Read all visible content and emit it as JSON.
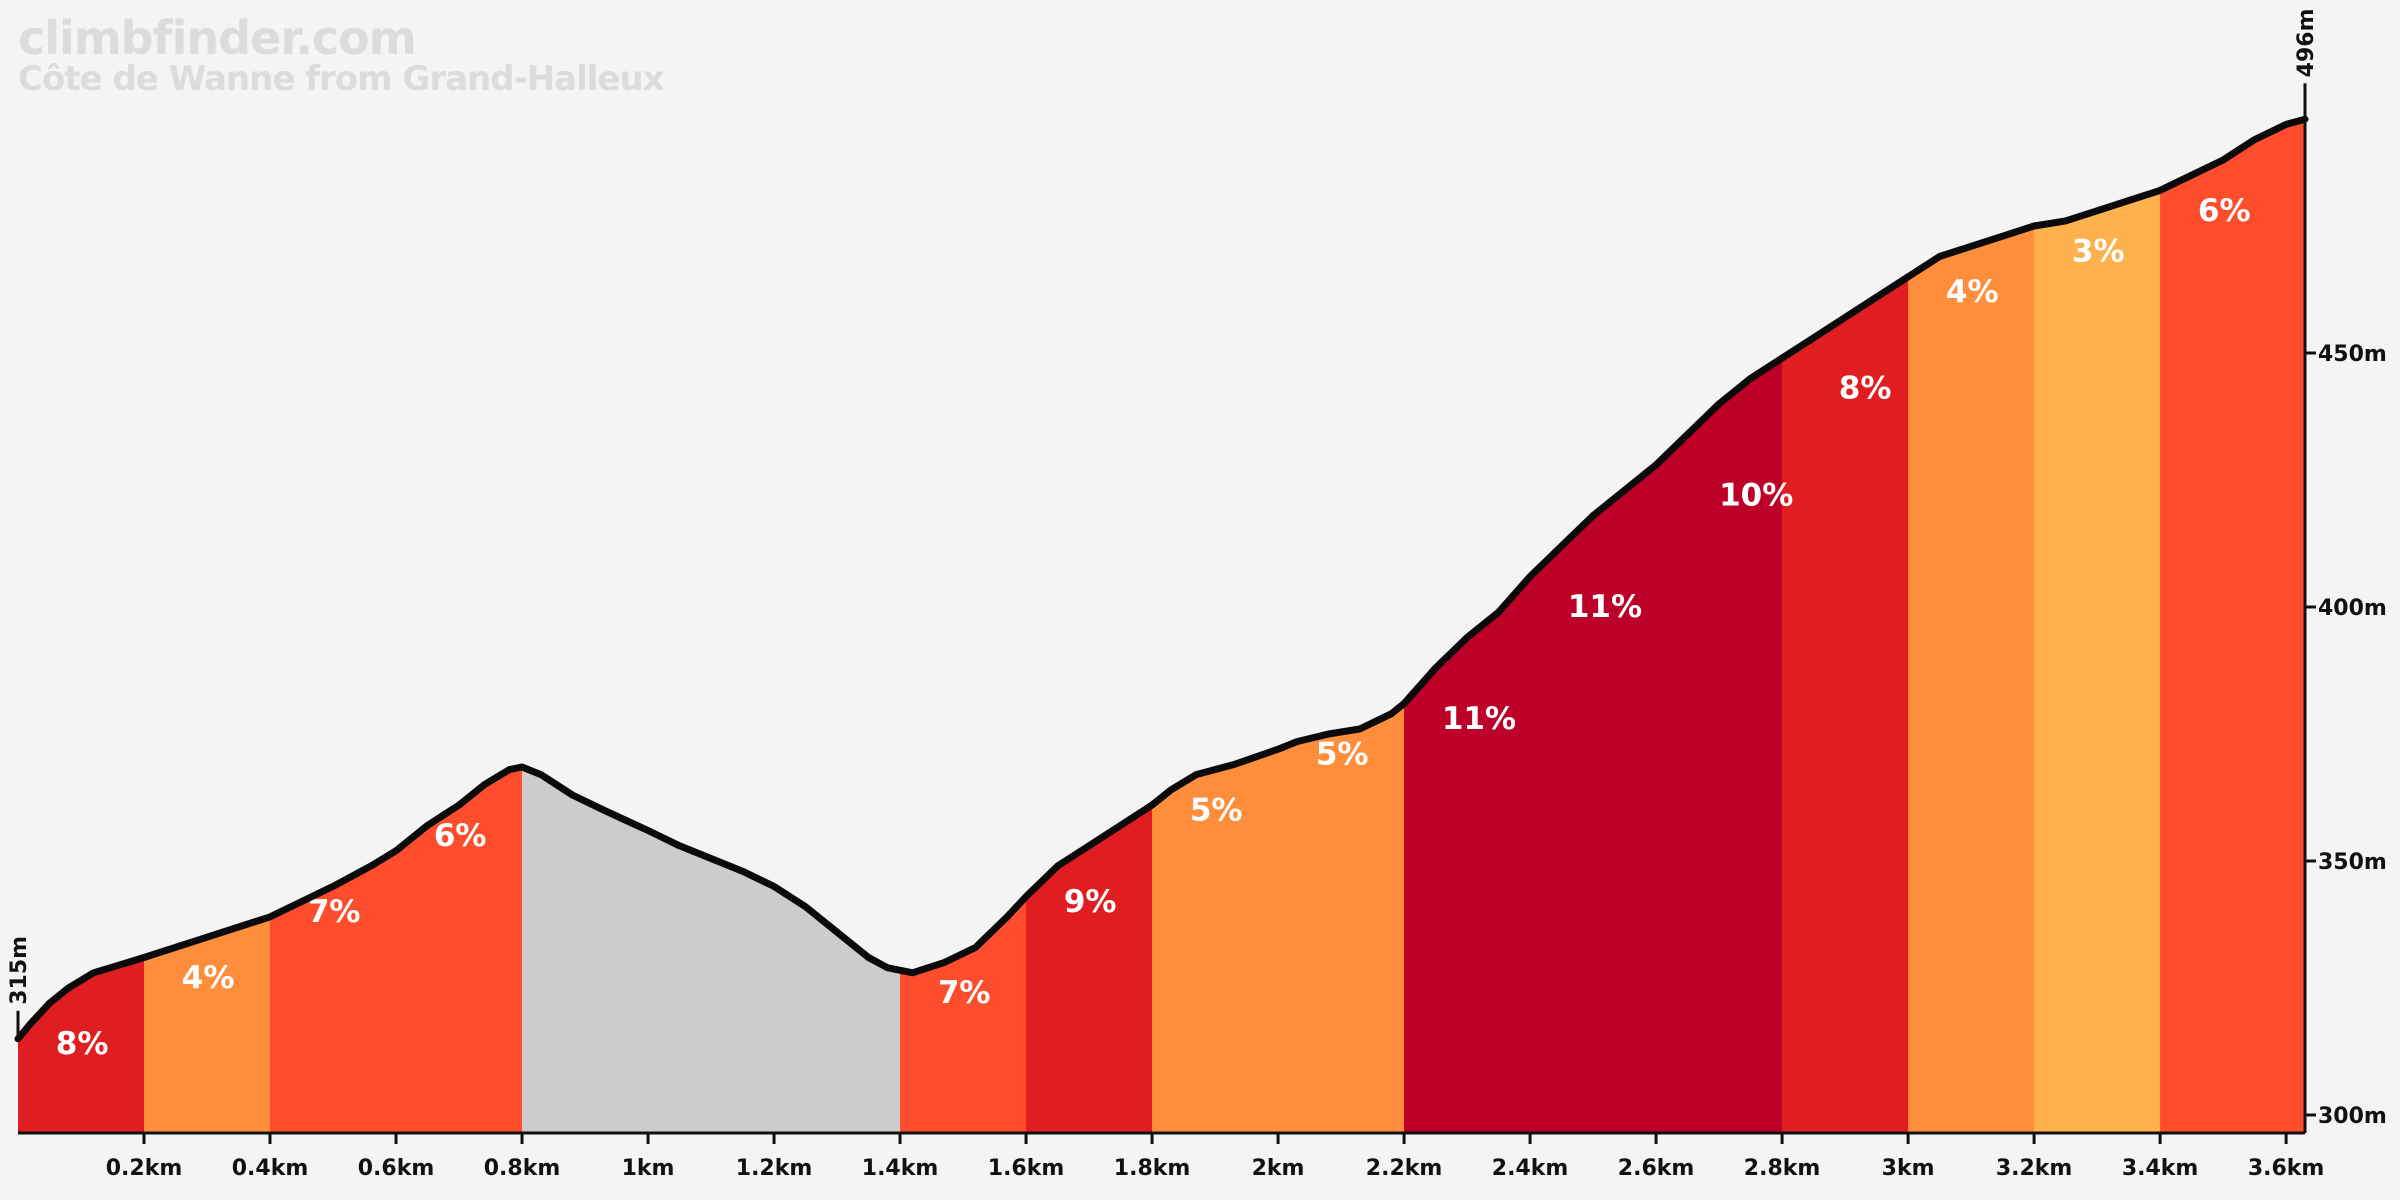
{
  "brand": {
    "site": "climbfinder.com",
    "climb": "Côte de Wanne from Grand-Halleux"
  },
  "chart_data": {
    "type": "area",
    "x_unit": "km",
    "y_unit": "m",
    "xlim": [
      0,
      3.63
    ],
    "ylim": [
      300,
      500
    ],
    "x_ticks": [
      "0.2km",
      "0.4km",
      "0.6km",
      "0.8km",
      "1km",
      "1.2km",
      "1.4km",
      "1.6km",
      "1.8km",
      "2km",
      "2.2km",
      "2.4km",
      "2.6km",
      "2.8km",
      "3km",
      "3.2km",
      "3.4km",
      "3.6km"
    ],
    "x_tick_values": [
      0.2,
      0.4,
      0.6,
      0.8,
      1.0,
      1.2,
      1.4,
      1.6,
      1.8,
      2.0,
      2.2,
      2.4,
      2.6,
      2.8,
      3.0,
      3.2,
      3.4,
      3.6
    ],
    "y_ticks": [
      "300m",
      "350m",
      "400m",
      "450m"
    ],
    "y_tick_values": [
      300,
      350,
      400,
      450
    ],
    "start_label": "315m",
    "end_label": "496m",
    "start_elevation": 315,
    "end_elevation": 496,
    "profile": [
      [
        0.0,
        315
      ],
      [
        0.02,
        318
      ],
      [
        0.05,
        322
      ],
      [
        0.08,
        325
      ],
      [
        0.12,
        328
      ],
      [
        0.2,
        331
      ],
      [
        0.3,
        335
      ],
      [
        0.4,
        339
      ],
      [
        0.45,
        342
      ],
      [
        0.5,
        345
      ],
      [
        0.56,
        349
      ],
      [
        0.6,
        352
      ],
      [
        0.65,
        357
      ],
      [
        0.7,
        361
      ],
      [
        0.74,
        365
      ],
      [
        0.78,
        368
      ],
      [
        0.8,
        368.5
      ],
      [
        0.83,
        367
      ],
      [
        0.88,
        363
      ],
      [
        0.93,
        360
      ],
      [
        1.0,
        356
      ],
      [
        1.05,
        353
      ],
      [
        1.15,
        348
      ],
      [
        1.2,
        345
      ],
      [
        1.25,
        341
      ],
      [
        1.3,
        336
      ],
      [
        1.35,
        331
      ],
      [
        1.38,
        329
      ],
      [
        1.42,
        328
      ],
      [
        1.47,
        330
      ],
      [
        1.52,
        333
      ],
      [
        1.57,
        339
      ],
      [
        1.6,
        343
      ],
      [
        1.65,
        349
      ],
      [
        1.7,
        353
      ],
      [
        1.75,
        357
      ],
      [
        1.8,
        361
      ],
      [
        1.83,
        364
      ],
      [
        1.87,
        367
      ],
      [
        1.93,
        369
      ],
      [
        2.0,
        372
      ],
      [
        2.03,
        373.5
      ],
      [
        2.08,
        375
      ],
      [
        2.13,
        376
      ],
      [
        2.18,
        379
      ],
      [
        2.2,
        381
      ],
      [
        2.25,
        388
      ],
      [
        2.3,
        394
      ],
      [
        2.35,
        399
      ],
      [
        2.4,
        406
      ],
      [
        2.45,
        412
      ],
      [
        2.5,
        418
      ],
      [
        2.55,
        423
      ],
      [
        2.6,
        428
      ],
      [
        2.65,
        434
      ],
      [
        2.7,
        440
      ],
      [
        2.75,
        445
      ],
      [
        2.8,
        449
      ],
      [
        2.85,
        453
      ],
      [
        2.9,
        457
      ],
      [
        2.95,
        461
      ],
      [
        3.0,
        465
      ],
      [
        3.05,
        469
      ],
      [
        3.1,
        471
      ],
      [
        3.15,
        473
      ],
      [
        3.2,
        475
      ],
      [
        3.25,
        476
      ],
      [
        3.3,
        478
      ],
      [
        3.35,
        480
      ],
      [
        3.4,
        482
      ],
      [
        3.45,
        485
      ],
      [
        3.5,
        488
      ],
      [
        3.55,
        492
      ],
      [
        3.6,
        495
      ],
      [
        3.63,
        496
      ]
    ],
    "segments": [
      {
        "x0": 0.0,
        "x1": 0.2,
        "label": "8%",
        "color": "#e01d20"
      },
      {
        "x0": 0.2,
        "x1": 0.4,
        "label": "4%",
        "color": "#fe8e3c"
      },
      {
        "x0": 0.4,
        "x1": 0.8,
        "label": "7%",
        "color": "#fe4d2d"
      },
      {
        "x0": 0.8,
        "x1": 1.4,
        "label": "",
        "color": "#cccccc"
      },
      {
        "x0": 1.4,
        "x1": 1.6,
        "label": "7%",
        "color": "#fe4d2d"
      },
      {
        "x0": 1.6,
        "x1": 1.8,
        "label": "9%",
        "color": "#e01d20"
      },
      {
        "x0": 1.8,
        "x1": 2.2,
        "label": "5%",
        "color": "#fe8e3c"
      },
      {
        "x0": 2.2,
        "x1": 2.8,
        "label": "11%",
        "color": "#bd0027"
      },
      {
        "x0": 2.8,
        "x1": 3.0,
        "label": "8%",
        "color": "#e01d20"
      },
      {
        "x0": 3.0,
        "x1": 3.2,
        "label": "4%",
        "color": "#fe8e3c"
      },
      {
        "x0": 3.2,
        "x1": 3.4,
        "label": "3%",
        "color": "#feb14c"
      },
      {
        "x0": 3.4,
        "x1": 3.63,
        "label": "6%",
        "color": "#fe4d2d"
      }
    ],
    "gradient_labels": [
      {
        "x": 0.06,
        "y": 312,
        "text": "8%"
      },
      {
        "x": 0.26,
        "y": 325,
        "text": "4%"
      },
      {
        "x": 0.46,
        "y": 338,
        "text": "7%"
      },
      {
        "x": 0.66,
        "y": 353,
        "text": "6%"
      },
      {
        "x": 1.46,
        "y": 322,
        "text": "7%"
      },
      {
        "x": 1.66,
        "y": 340,
        "text": "9%"
      },
      {
        "x": 1.86,
        "y": 358,
        "text": "5%"
      },
      {
        "x": 2.06,
        "y": 369,
        "text": "5%"
      },
      {
        "x": 2.26,
        "y": 376,
        "text": "11%"
      },
      {
        "x": 2.46,
        "y": 398,
        "text": "11%"
      },
      {
        "x": 2.7,
        "y": 420,
        "text": "10%"
      },
      {
        "x": 2.89,
        "y": 441,
        "text": "8%"
      },
      {
        "x": 3.06,
        "y": 460,
        "text": "4%"
      },
      {
        "x": 3.26,
        "y": 468,
        "text": "3%"
      },
      {
        "x": 3.46,
        "y": 476,
        "text": "6%"
      }
    ],
    "grid": false
  }
}
